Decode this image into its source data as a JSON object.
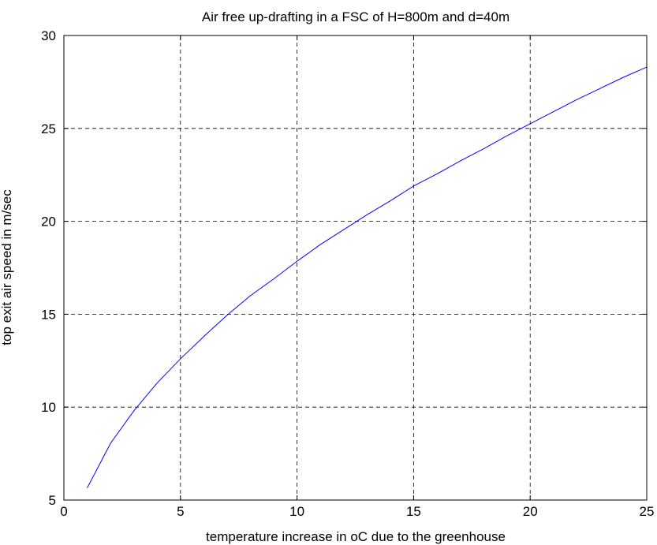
{
  "chart_data": {
    "type": "line",
    "title": "Air free up-drafting in a FSC of H=800m and d=40m",
    "xlabel": "temperature increase in oC due to the greenhouse",
    "ylabel": "top exit  air speed in m/sec",
    "xlim": [
      0,
      25
    ],
    "ylim": [
      5,
      30
    ],
    "xticks": [
      0,
      5,
      10,
      15,
      20,
      25
    ],
    "yticks": [
      5,
      10,
      15,
      20,
      25,
      30
    ],
    "xtick_labels": [
      "0",
      "5",
      "10",
      "15",
      "20",
      "25"
    ],
    "ytick_labels": [
      "5",
      "10",
      "15",
      "20",
      "25",
      "30"
    ],
    "grid": true,
    "grid_style": "dashed",
    "series": [
      {
        "color": "#0000ff",
        "x": [
          1,
          2,
          3,
          4,
          5,
          6,
          7,
          8,
          9,
          10,
          11,
          12,
          13,
          14,
          15,
          16,
          17,
          18,
          19,
          20,
          21,
          22,
          23,
          24,
          25
        ],
        "y": [
          5.65,
          8.05,
          9.8,
          11.3,
          12.6,
          13.8,
          14.95,
          16.0,
          16.9,
          17.85,
          18.75,
          19.55,
          20.35,
          21.1,
          21.9,
          22.55,
          23.25,
          23.9,
          24.6,
          25.25,
          25.9,
          26.55,
          27.15,
          27.75,
          28.3
        ]
      }
    ]
  }
}
